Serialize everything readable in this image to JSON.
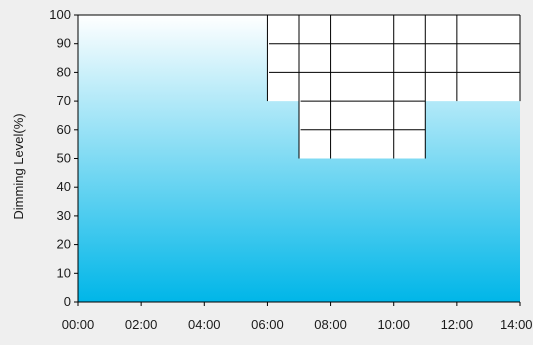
{
  "window": {
    "background_color": "#efefef"
  },
  "chart_data": {
    "type": "area",
    "title": "",
    "xlabel": "",
    "ylabel": "Dimming Level(%)",
    "x_ticks": [
      "00:00",
      "02:00",
      "04:00",
      "06:00",
      "08:00",
      "10:00",
      "12:00",
      "14:00"
    ],
    "y_ticks": [
      "0",
      "10",
      "20",
      "30",
      "40",
      "50",
      "60",
      "70",
      "80",
      "90",
      "100"
    ],
    "xlim": [
      0,
      14
    ],
    "ylim": [
      0,
      100
    ],
    "grid": false,
    "series": [
      {
        "x_hours": [
          0,
          6,
          6,
          7,
          7,
          11,
          11,
          14
        ],
        "values": [
          100,
          100,
          70,
          70,
          50,
          50,
          70,
          70
        ]
      }
    ],
    "table_columns_hours": [
      6,
      8,
      10,
      12,
      14
    ],
    "table_rows_levels": [
      100,
      90,
      80,
      70,
      60,
      50
    ],
    "colors": {
      "fill_top": "#ffffff",
      "fill_bottom": "#00b6e8",
      "plot_background": "#ffffff",
      "axis": "#000000",
      "grid_lines": "#000000"
    }
  }
}
